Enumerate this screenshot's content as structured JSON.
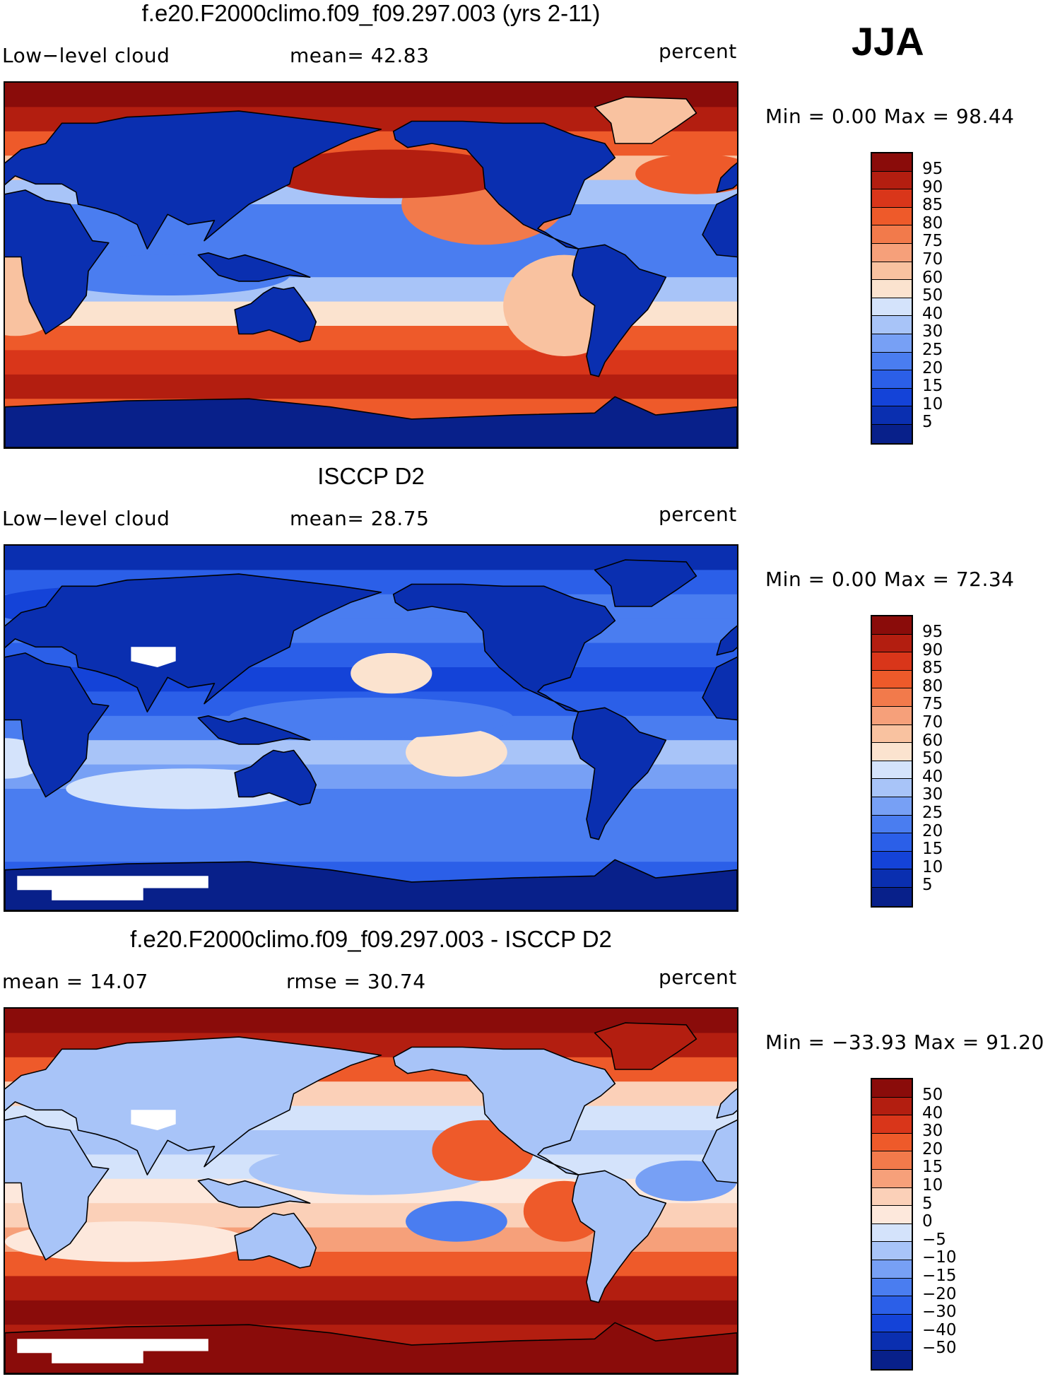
{
  "season": "JJA",
  "colors": {
    "abs_scale": [
      "#08208a",
      "#0a2fb0",
      "#1443d8",
      "#2b5fe8",
      "#4a7df0",
      "#77a0f5",
      "#a8c4f8",
      "#d4e3fb",
      "#fbe3cf",
      "#f9c2a0",
      "#f6a07a",
      "#f27a4b",
      "#ee5a2a",
      "#d9361a",
      "#b31e10",
      "#8a0c0a"
    ],
    "diff_scale": [
      "#08208a",
      "#0a2fb0",
      "#1443d8",
      "#2b5fe8",
      "#4a7df0",
      "#77a0f5",
      "#a8c4f8",
      "#d4e3fb",
      "#fde8dc",
      "#fbd0b8",
      "#f6a07a",
      "#f27a4b",
      "#ee5a2a",
      "#d9361a",
      "#b31e10",
      "#8a0c0a"
    ],
    "land_outline": "#000000",
    "missing": "#ffffff"
  },
  "chart_data": [
    {
      "type": "heatmap",
      "title": "f.e20.F2000climo.f09_f09.297.003 (yrs 2-11)",
      "left_label": "Low−level cloud",
      "mean_text": "mean=   42.83",
      "units": "percent",
      "min_max_text": "Min =      0.00 Max =    98.44",
      "min": 0.0,
      "max": 98.44,
      "mean": 42.83,
      "colorbar_levels": [
        "95",
        "90",
        "85",
        "80",
        "75",
        "70",
        "60",
        "50",
        "40",
        "30",
        "25",
        "20",
        "15",
        "10",
        "5"
      ],
      "scale": "abs_scale",
      "zonal_mean_profile": [
        95,
        90,
        80,
        60,
        40,
        25,
        25,
        30,
        40,
        55,
        75,
        85,
        90,
        80,
        10
      ]
    },
    {
      "type": "heatmap",
      "title": "ISCCP D2",
      "left_label": "Low−level cloud",
      "mean_text": "mean=   28.75",
      "units": "percent",
      "min_max_text": "Min =      0.00 Max =    72.34",
      "min": 0.0,
      "max": 72.34,
      "mean": 28.75,
      "colorbar_levels": [
        "95",
        "90",
        "85",
        "80",
        "75",
        "70",
        "60",
        "50",
        "40",
        "30",
        "25",
        "20",
        "15",
        "10",
        "5"
      ],
      "scale": "abs_scale",
      "zonal_mean_profile": [
        10,
        20,
        25,
        25,
        20,
        15,
        20,
        30,
        40,
        35,
        30,
        30,
        25,
        20,
        5
      ]
    },
    {
      "type": "heatmap",
      "title": "f.e20.F2000climo.f09_f09.297.003 - ISCCP D2",
      "left_label": "mean  =    14.07",
      "mean_text": "rmse  =    30.74",
      "units": "percent",
      "min_max_text": "Min = −33.93  Max =    91.20",
      "min": -33.93,
      "max": 91.2,
      "mean": 14.07,
      "rmse": 30.74,
      "colorbar_levels": [
        "50",
        "40",
        "30",
        "20",
        "15",
        "10",
        "5",
        "0",
        "−5",
        "−10",
        "−15",
        "−20",
        "−30",
        "−40",
        "−50"
      ],
      "scale": "diff_scale",
      "zonal_mean_profile": [
        60,
        50,
        30,
        10,
        -5,
        -10,
        -5,
        0,
        10,
        20,
        30,
        50,
        55,
        50,
        40
      ]
    }
  ]
}
